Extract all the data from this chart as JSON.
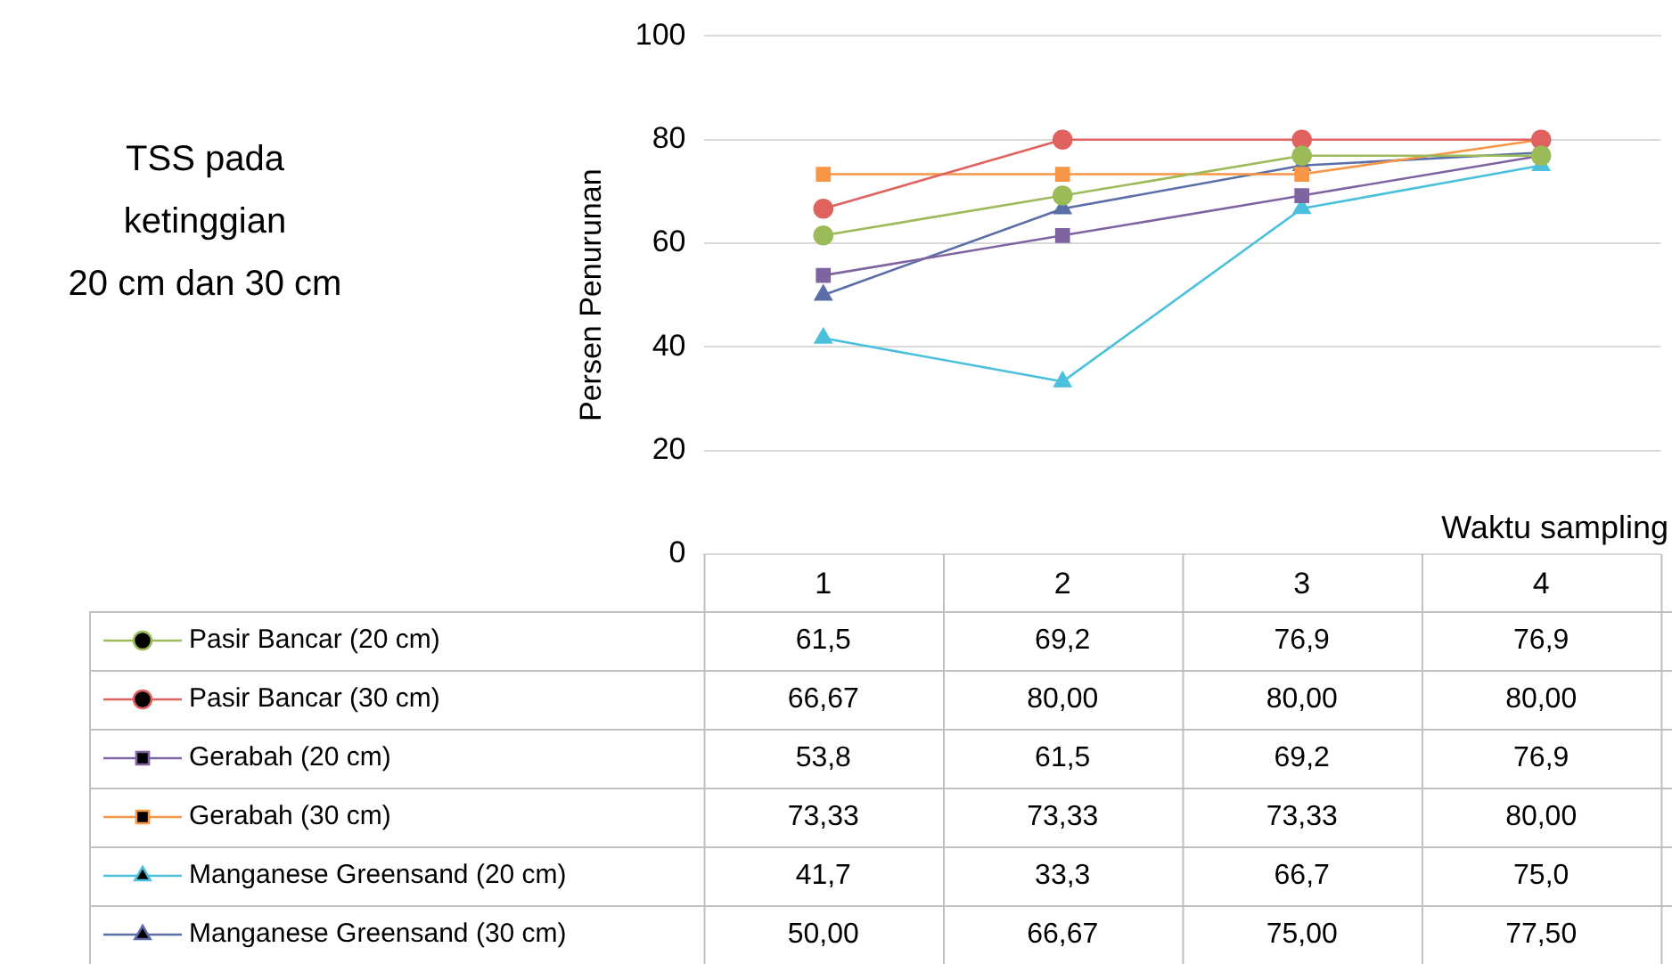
{
  "chart_data": {
    "type": "line",
    "title": "TSS pada\nketinggian\n20 cm dan 30 cm",
    "xlabel": "Waktu sampling",
    "ylabel": "Persen Penurunan",
    "categories": [
      "1",
      "2",
      "3",
      "4"
    ],
    "series": [
      {
        "name": "Pasir Bancar (20 cm)",
        "color": "#9bbb59",
        "marker": "circle",
        "values": [
          61.5,
          69.2,
          76.9,
          76.9
        ],
        "value_labels": [
          "61,5",
          "69,2",
          "76,9",
          "76,9"
        ]
      },
      {
        "name": "Pasir Bancar (30 cm)",
        "color": "#e0625e",
        "marker": "circle",
        "values": [
          66.67,
          80.0,
          80.0,
          80.0
        ],
        "value_labels": [
          "66,67",
          "80,00",
          "80,00",
          "80,00"
        ]
      },
      {
        "name": "Gerabah (20 cm)",
        "color": "#8064a2",
        "marker": "square",
        "values": [
          53.8,
          61.5,
          69.2,
          76.9
        ],
        "value_labels": [
          "53,8",
          "61,5",
          "69,2",
          "76,9"
        ]
      },
      {
        "name": "Gerabah (30 cm)",
        "color": "#f79646",
        "marker": "square",
        "values": [
          73.33,
          73.33,
          73.33,
          80.0
        ],
        "value_labels": [
          "73,33",
          "73,33",
          "73,33",
          "80,00"
        ]
      },
      {
        "name": "Manganese Greensand (20 cm)",
        "color": "#4bc0dc",
        "marker": "triangle",
        "values": [
          41.7,
          33.3,
          66.7,
          75.0
        ],
        "value_labels": [
          "41,7",
          "33,3",
          "66,7",
          "75,0"
        ]
      },
      {
        "name": "Manganese Greensand (30 cm)",
        "color": "#5a6ea8",
        "marker": "triangle",
        "values": [
          50.0,
          66.67,
          75.0,
          77.5
        ],
        "value_labels": [
          "50,00",
          "66,67",
          "75,00",
          "77,50"
        ]
      }
    ],
    "ylim": [
      0,
      100
    ],
    "yticks": [
      0,
      20,
      40,
      60,
      80,
      100
    ],
    "grid": "y",
    "legend": "bottom",
    "line_style": "solid"
  }
}
